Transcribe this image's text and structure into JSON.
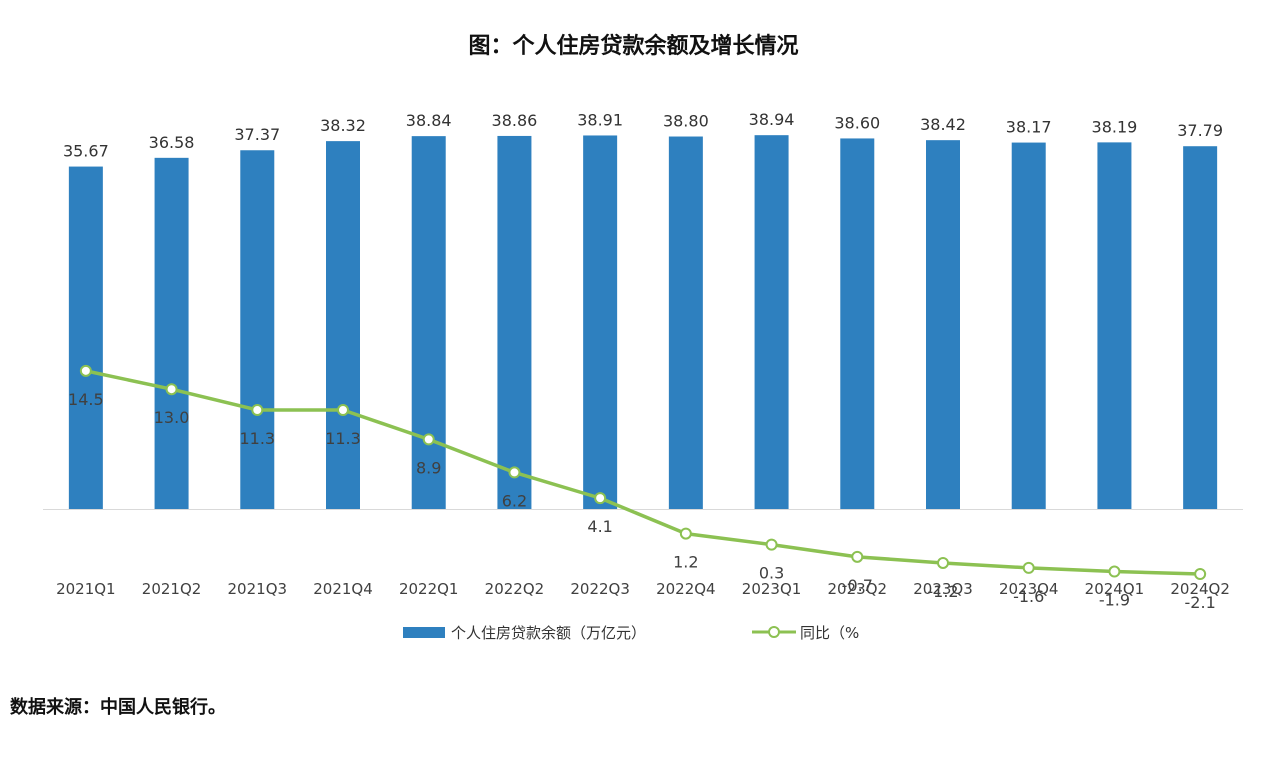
{
  "chart_data": {
    "type": "bar",
    "title": "图：个人住房贷款余额及增长情况",
    "categories": [
      "2021Q1",
      "2021Q2",
      "2021Q3",
      "2021Q4",
      "2022Q1",
      "2022Q2",
      "2022Q3",
      "2022Q4",
      "2023Q1",
      "2023Q2",
      "2023Q3",
      "2023Q4",
      "2024Q1",
      "2024Q2"
    ],
    "series": [
      {
        "name": "个人住房贷款余额（万亿元）",
        "type": "bar",
        "color": "#2e80bf",
        "values": [
          35.67,
          36.58,
          37.37,
          38.32,
          38.84,
          38.86,
          38.91,
          38.8,
          38.94,
          38.6,
          38.42,
          38.17,
          38.19,
          37.79
        ],
        "labels": [
          "35.67",
          "36.58",
          "37.37",
          "38.32",
          "38.84",
          "38.86",
          "38.91",
          "38.80",
          "38.94",
          "38.60",
          "38.42",
          "38.17",
          "38.19",
          "37.79"
        ]
      },
      {
        "name": "同比（%",
        "type": "line",
        "color": "#8cc152",
        "values": [
          14.5,
          13.0,
          11.3,
          11.3,
          8.9,
          6.2,
          4.1,
          1.2,
          0.3,
          -0.7,
          -1.2,
          -1.6,
          -1.9,
          -2.1
        ],
        "labels": [
          "14.5",
          "13.0",
          "11.3",
          "11.3",
          "8.9",
          "6.2",
          "4.1",
          "1.2",
          "0.3",
          "-0.7",
          "-1.2",
          "-1.6",
          "-1.9",
          "-2.1"
        ]
      }
    ],
    "ylim_bar": [
      0,
      40
    ],
    "ylim_line": [
      -3,
      35
    ],
    "legend": "bottom",
    "grid": false
  },
  "source": "数据来源：中国人民银行。"
}
